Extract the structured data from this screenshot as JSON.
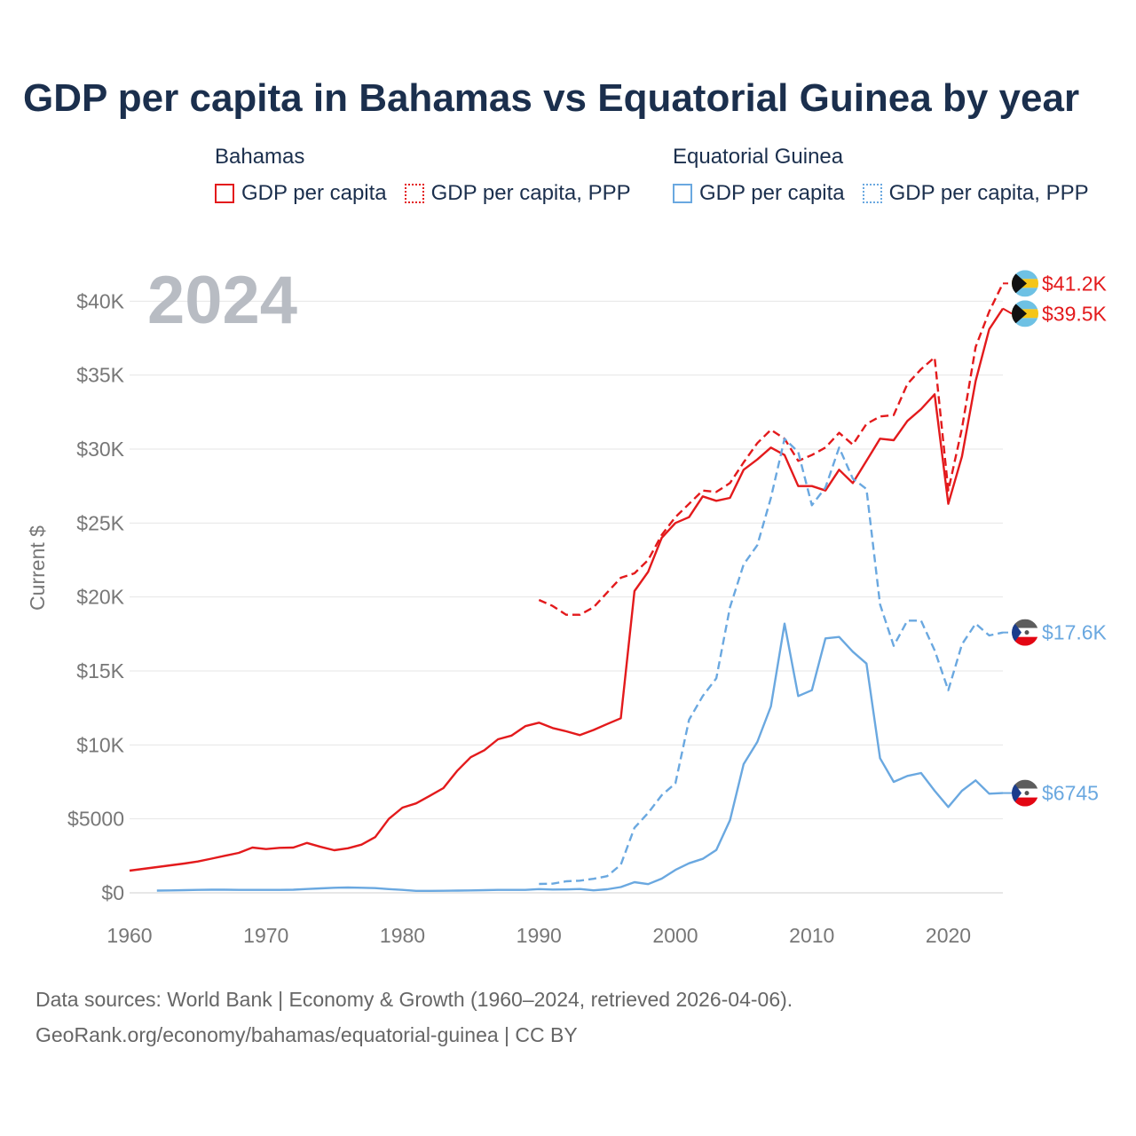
{
  "title": "GDP per capita in Bahamas vs Equatorial Guinea by year",
  "legend": {
    "groups": [
      {
        "name": "Bahamas",
        "items": [
          {
            "label": "GDP per capita"
          },
          {
            "label": "GDP per capita, PPP"
          }
        ]
      },
      {
        "name": "Equatorial Guinea",
        "items": [
          {
            "label": "GDP per capita"
          },
          {
            "label": "GDP per capita, PPP"
          }
        ]
      }
    ]
  },
  "colors": {
    "bahamas": "#e31a1c",
    "equatorial_guinea": "#6aa8e0",
    "title": "#1b2f4d",
    "year": "#b8bcc3"
  },
  "source": {
    "line1": "Data sources: World Bank | Economy & Growth (1960–2024, retrieved 2026-04-06).",
    "line2": "GeoRank.org/economy/bahamas/equatorial-guinea | CC BY"
  },
  "chart_data": {
    "type": "line",
    "title": "GDP per capita in Bahamas vs Equatorial Guinea by year",
    "year_label": "2024",
    "xlabel": "",
    "ylabel": "Current $",
    "xlim": [
      1960,
      2024
    ],
    "ylim": [
      0,
      42000
    ],
    "x_ticks": [
      1960,
      1970,
      1980,
      1990,
      2000,
      2010,
      2020
    ],
    "y_ticks": [
      0,
      5000,
      10000,
      15000,
      20000,
      25000,
      30000,
      35000,
      40000
    ],
    "y_tick_labels": [
      "$0",
      "$5000",
      "$10K",
      "$15K",
      "$20K",
      "$25K",
      "$30K",
      "$35K",
      "$40K"
    ],
    "grid": true,
    "series": [
      {
        "name": "Bahamas GDP per capita",
        "country": "bahamas",
        "style": "solid",
        "end_label": "$39.5K",
        "points": [
          [
            1960,
            1500
          ],
          [
            1961,
            1620
          ],
          [
            1962,
            1740
          ],
          [
            1963,
            1860
          ],
          [
            1964,
            1980
          ],
          [
            1965,
            2120
          ],
          [
            1966,
            2310
          ],
          [
            1967,
            2510
          ],
          [
            1968,
            2700
          ],
          [
            1969,
            3060
          ],
          [
            1970,
            2960
          ],
          [
            1971,
            3040
          ],
          [
            1972,
            3060
          ],
          [
            1973,
            3370
          ],
          [
            1974,
            3110
          ],
          [
            1975,
            2880
          ],
          [
            1976,
            3010
          ],
          [
            1977,
            3260
          ],
          [
            1978,
            3770
          ],
          [
            1979,
            5000
          ],
          [
            1980,
            5760
          ],
          [
            1981,
            6050
          ],
          [
            1982,
            6560
          ],
          [
            1983,
            7080
          ],
          [
            1984,
            8240
          ],
          [
            1985,
            9170
          ],
          [
            1986,
            9640
          ],
          [
            1987,
            10380
          ],
          [
            1988,
            10630
          ],
          [
            1989,
            11270
          ],
          [
            1990,
            11500
          ],
          [
            1991,
            11140
          ],
          [
            1992,
            10920
          ],
          [
            1993,
            10660
          ],
          [
            1994,
            11010
          ],
          [
            1995,
            11410
          ],
          [
            1996,
            11800
          ],
          [
            1997,
            20400
          ],
          [
            1998,
            21700
          ],
          [
            1999,
            24000
          ],
          [
            2000,
            25000
          ],
          [
            2001,
            25400
          ],
          [
            2002,
            26800
          ],
          [
            2003,
            26500
          ],
          [
            2004,
            26700
          ],
          [
            2005,
            28600
          ],
          [
            2006,
            29300
          ],
          [
            2007,
            30100
          ],
          [
            2008,
            29600
          ],
          [
            2009,
            27500
          ],
          [
            2010,
            27500
          ],
          [
            2011,
            27200
          ],
          [
            2012,
            28600
          ],
          [
            2013,
            27700
          ],
          [
            2014,
            29200
          ],
          [
            2015,
            30700
          ],
          [
            2016,
            30600
          ],
          [
            2017,
            31900
          ],
          [
            2018,
            32700
          ],
          [
            2019,
            33700
          ],
          [
            2020,
            26300
          ],
          [
            2021,
            29500
          ],
          [
            2022,
            34600
          ],
          [
            2023,
            38100
          ],
          [
            2024,
            39500
          ]
        ]
      },
      {
        "name": "Bahamas GDP per capita, PPP",
        "country": "bahamas",
        "style": "dashed",
        "end_label": "$41.2K",
        "points": [
          [
            1990,
            19800
          ],
          [
            1991,
            19400
          ],
          [
            1992,
            18800
          ],
          [
            1993,
            18800
          ],
          [
            1994,
            19300
          ],
          [
            1995,
            20300
          ],
          [
            1996,
            21300
          ],
          [
            1997,
            21600
          ],
          [
            1998,
            22500
          ],
          [
            1999,
            24200
          ],
          [
            2000,
            25400
          ],
          [
            2001,
            26300
          ],
          [
            2002,
            27200
          ],
          [
            2003,
            27100
          ],
          [
            2004,
            27700
          ],
          [
            2005,
            29100
          ],
          [
            2006,
            30400
          ],
          [
            2007,
            31300
          ],
          [
            2008,
            30700
          ],
          [
            2009,
            29200
          ],
          [
            2010,
            29600
          ],
          [
            2011,
            30100
          ],
          [
            2012,
            31100
          ],
          [
            2013,
            30300
          ],
          [
            2014,
            31700
          ],
          [
            2015,
            32200
          ],
          [
            2016,
            32300
          ],
          [
            2017,
            34400
          ],
          [
            2018,
            35400
          ],
          [
            2019,
            36200
          ],
          [
            2020,
            27200
          ],
          [
            2021,
            31400
          ],
          [
            2022,
            36900
          ],
          [
            2023,
            39300
          ],
          [
            2024,
            41200
          ]
        ]
      },
      {
        "name": "Equatorial Guinea GDP per capita",
        "country": "equatorial_guinea",
        "style": "solid",
        "end_label": "$6745",
        "points": [
          [
            1962,
            150
          ],
          [
            1963,
            160
          ],
          [
            1964,
            180
          ],
          [
            1965,
            200
          ],
          [
            1966,
            210
          ],
          [
            1967,
            210
          ],
          [
            1968,
            200
          ],
          [
            1969,
            200
          ],
          [
            1970,
            200
          ],
          [
            1971,
            200
          ],
          [
            1972,
            210
          ],
          [
            1973,
            260
          ],
          [
            1974,
            300
          ],
          [
            1975,
            340
          ],
          [
            1976,
            360
          ],
          [
            1977,
            340
          ],
          [
            1978,
            320
          ],
          [
            1979,
            250
          ],
          [
            1980,
            200
          ],
          [
            1981,
            130
          ],
          [
            1982,
            130
          ],
          [
            1983,
            140
          ],
          [
            1984,
            150
          ],
          [
            1985,
            160
          ],
          [
            1986,
            180
          ],
          [
            1987,
            200
          ],
          [
            1988,
            200
          ],
          [
            1989,
            200
          ],
          [
            1990,
            250
          ],
          [
            1991,
            220
          ],
          [
            1992,
            230
          ],
          [
            1993,
            260
          ],
          [
            1994,
            170
          ],
          [
            1995,
            240
          ],
          [
            1996,
            390
          ],
          [
            1997,
            720
          ],
          [
            1998,
            590
          ],
          [
            1999,
            960
          ],
          [
            2000,
            1550
          ],
          [
            2001,
            2000
          ],
          [
            2002,
            2300
          ],
          [
            2003,
            2900
          ],
          [
            2004,
            4900
          ],
          [
            2005,
            8700
          ],
          [
            2006,
            10200
          ],
          [
            2007,
            12600
          ],
          [
            2008,
            18200
          ],
          [
            2009,
            13300
          ],
          [
            2010,
            13700
          ],
          [
            2011,
            17200
          ],
          [
            2012,
            17300
          ],
          [
            2013,
            16300
          ],
          [
            2014,
            15500
          ],
          [
            2015,
            9100
          ],
          [
            2016,
            7500
          ],
          [
            2017,
            7900
          ],
          [
            2018,
            8100
          ],
          [
            2019,
            6900
          ],
          [
            2020,
            5800
          ],
          [
            2021,
            6900
          ],
          [
            2022,
            7600
          ],
          [
            2023,
            6700
          ],
          [
            2024,
            6745
          ]
        ]
      },
      {
        "name": "Equatorial Guinea GDP per capita, PPP",
        "country": "equatorial_guinea",
        "style": "dashed",
        "end_label": "$17.6K",
        "points": [
          [
            1990,
            600
          ],
          [
            1991,
            620
          ],
          [
            1992,
            780
          ],
          [
            1993,
            820
          ],
          [
            1994,
            950
          ],
          [
            1995,
            1130
          ],
          [
            1996,
            1900
          ],
          [
            1997,
            4400
          ],
          [
            1998,
            5400
          ],
          [
            1999,
            6600
          ],
          [
            2000,
            7400
          ],
          [
            2001,
            11700
          ],
          [
            2002,
            13300
          ],
          [
            2003,
            14500
          ],
          [
            2004,
            19300
          ],
          [
            2005,
            22200
          ],
          [
            2006,
            23500
          ],
          [
            2007,
            26700
          ],
          [
            2008,
            30700
          ],
          [
            2009,
            29800
          ],
          [
            2010,
            26200
          ],
          [
            2011,
            27400
          ],
          [
            2012,
            30100
          ],
          [
            2013,
            28000
          ],
          [
            2014,
            27300
          ],
          [
            2015,
            19500
          ],
          [
            2016,
            16700
          ],
          [
            2017,
            18400
          ],
          [
            2018,
            18400
          ],
          [
            2019,
            16400
          ],
          [
            2020,
            13700
          ],
          [
            2021,
            16800
          ],
          [
            2022,
            18200
          ],
          [
            2023,
            17400
          ],
          [
            2024,
            17600
          ]
        ]
      }
    ]
  }
}
